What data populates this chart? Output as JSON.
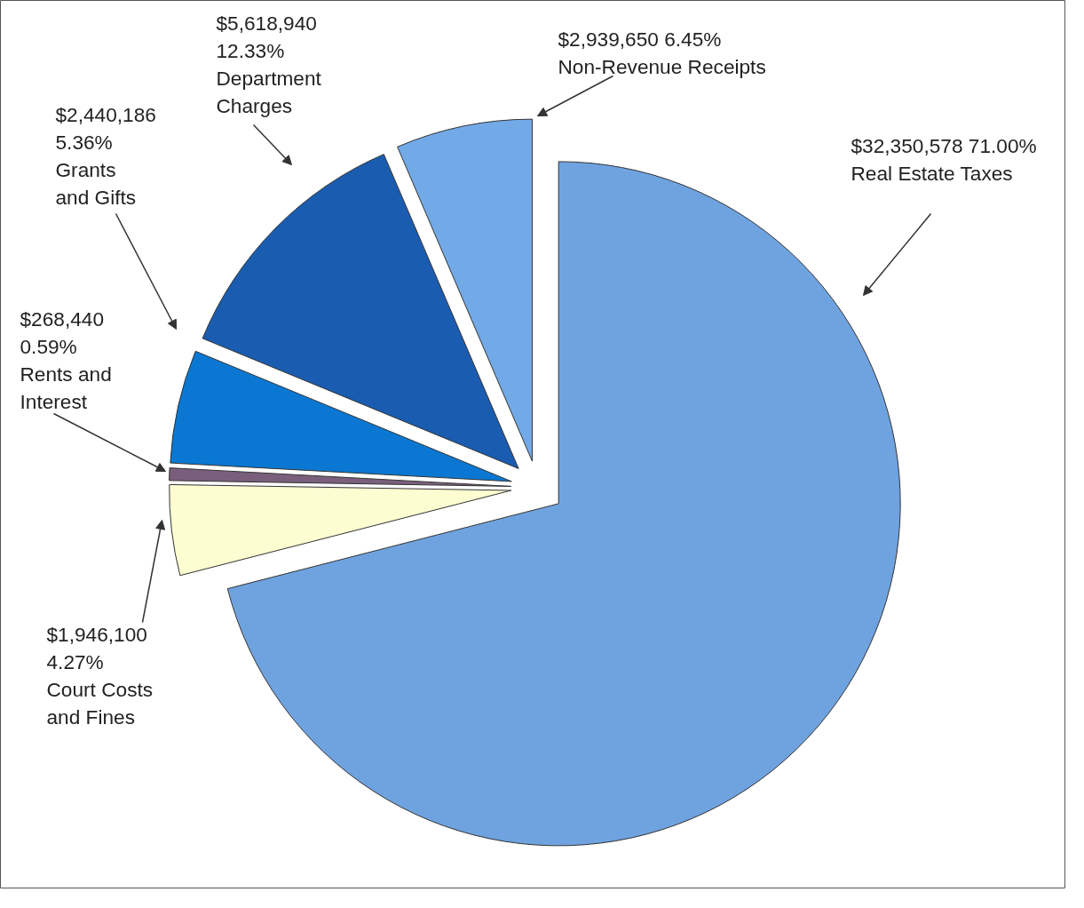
{
  "chart_data": {
    "type": "pie",
    "categories": [
      "Real Estate Taxes",
      "Court Costs and Fines",
      "Rents and Interest",
      "Grants and Gifts",
      "Department Charges",
      "Non-Revenue Receipts"
    ],
    "values": [
      32350578,
      1946100,
      268440,
      2440186,
      5618940,
      2939650
    ],
    "colors": [
      "#6fa3e0",
      "#fdfdd2",
      "#7a5f7c",
      "#0a78d2",
      "#1a5cb0",
      "#72aae8"
    ],
    "value_labels": [
      "$32,350,578 71.00%",
      "$1,946,100\n4.27%",
      "$268,440\n0.59%",
      "$2,440,186\n5.36%",
      "$5,618,940\n12.33%",
      "$2,939,650   6.45%"
    ]
  }
}
